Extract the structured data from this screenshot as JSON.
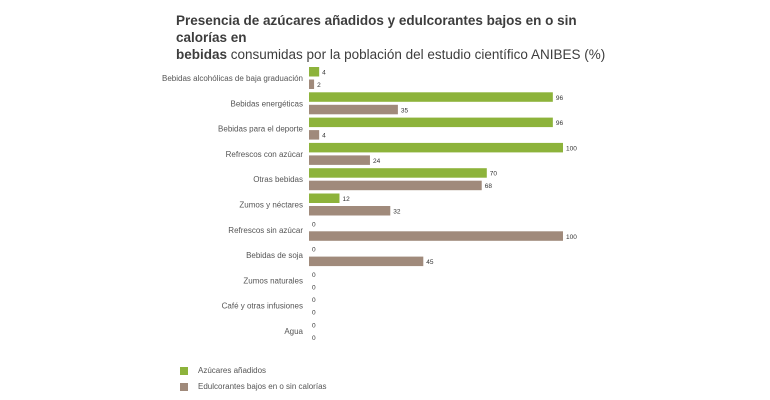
{
  "title": {
    "line1": "Presencia de azúcares añadidos y edulcorantes bajos en o sin calorías en",
    "line2_bold": "bebidas",
    "line2_rest": " consumidas por la población del estudio científico ANIBES (%)"
  },
  "colors": {
    "added_sugar": "#8db33b",
    "sweeteners": "#a08a7b",
    "label_text": "#555555",
    "value_text": "#333333"
  },
  "chart_data": {
    "type": "bar",
    "orientation": "horizontal",
    "title": "Presencia de azúcares añadidos y edulcorantes bajos en o sin calorías en bebidas consumidas por la población del estudio científico ANIBES (%)",
    "categories": [
      "Bebidas alcohólicas de baja graduación",
      "Bebidas energéticas",
      "Bebidas para el deporte",
      "Refrescos con azúcar",
      "Otras bebidas",
      "Zumos y néctares",
      "Refrescos sin azúcar",
      "Bebidas de soja",
      "Zumos naturales",
      "Café y otras infusiones",
      "Agua"
    ],
    "series": [
      {
        "name": "Azúcares añadidos",
        "color": "#8db33b",
        "values": [
          4,
          96,
          96,
          100,
          70,
          12,
          0,
          0,
          0,
          0,
          0
        ]
      },
      {
        "name": "Edulcorantes bajos en o sin calorías",
        "color": "#a08a7b",
        "values": [
          2,
          35,
          4,
          24,
          68,
          32,
          100,
          45,
          0,
          0,
          0
        ]
      }
    ],
    "xlim": [
      0,
      100
    ],
    "xlabel": "",
    "ylabel": "",
    "grid": false,
    "legend": "bottom-left"
  }
}
